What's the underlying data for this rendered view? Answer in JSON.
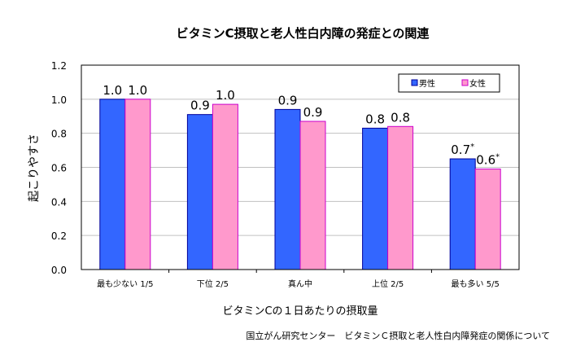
{
  "chart_data": {
    "type": "bar",
    "title": "ビタミンC摂取と老人性白内障の発症との関連",
    "xlabel": "ビタミンCの１日あたりの摂取量",
    "ylabel": "起こりやすさ",
    "ylim": [
      0,
      1.2
    ],
    "yticks": [
      "0.0",
      "0.2",
      "0.4",
      "0.6",
      "0.8",
      "1.0",
      "1.2"
    ],
    "grid": true,
    "legend_placement": "top-right",
    "categories": [
      "最も少ない 1/5",
      "下位 2/5",
      "真ん中",
      "上位 2/5",
      "最も多い 5/5"
    ],
    "series": [
      {
        "name": "男性",
        "color": "#3366FF",
        "edge": "#000099",
        "values": [
          1.0,
          0.91,
          0.94,
          0.83,
          0.65
        ],
        "labels": [
          "1.0",
          "0.9",
          "0.9",
          "0.8",
          "0.7*"
        ]
      },
      {
        "name": "女性",
        "color": "#FF99CC",
        "edge": "#CC00CC",
        "values": [
          1.0,
          0.97,
          0.87,
          0.84,
          0.59
        ],
        "labels": [
          "1.0",
          "1.0",
          "0.9",
          "0.8",
          "0.6*"
        ]
      }
    ]
  },
  "source": "国立がん研究センター　ビタミンＣ摂取と老人性白内障発症の関係について"
}
